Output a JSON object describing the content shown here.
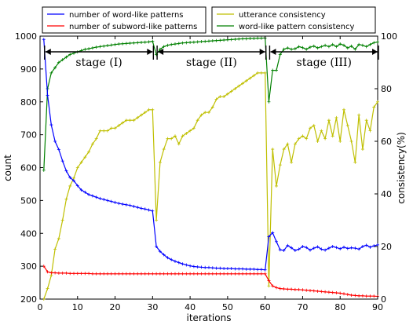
{
  "chart_data": {
    "type": "line",
    "xlabel": "iterations",
    "ylabel_left": "count",
    "ylabel_right": "consistency(%)",
    "xlim": [
      0,
      90
    ],
    "ylim_left": [
      200,
      1000
    ],
    "ylim_right": [
      0,
      100
    ],
    "x_ticks": [
      "0",
      "10",
      "20",
      "30",
      "40",
      "50",
      "60",
      "70",
      "80",
      "90"
    ],
    "y_left_ticks": [
      "200",
      "300",
      "400",
      "500",
      "600",
      "700",
      "800",
      "900",
      "1000"
    ],
    "y_right_ticks": [
      "0",
      "20",
      "40",
      "60",
      "80",
      "100"
    ],
    "grid": false,
    "legend_left": [
      {
        "label": "number of word-like patterns",
        "color": "#0000ff"
      },
      {
        "label": "number of subword-like patterns",
        "color": "#ff0000"
      }
    ],
    "legend_right": [
      {
        "label": "utterance consistency",
        "color": "#bfbf00"
      },
      {
        "label": "word-like pattern consistency",
        "color": "#008000"
      }
    ],
    "stages": [
      {
        "label": "stage (I)",
        "x_range": [
          1,
          30
        ]
      },
      {
        "label": "stage (II)",
        "x_range": [
          31,
          60
        ]
      },
      {
        "label": "stage (III)",
        "x_range": [
          61,
          90
        ]
      }
    ],
    "series": [
      {
        "name": "number of word-like patterns",
        "axis": "left",
        "color": "#0000ff",
        "x": [
          1,
          2,
          3,
          4,
          5,
          6,
          7,
          8,
          9,
          10,
          11,
          12,
          13,
          14,
          15,
          16,
          17,
          18,
          19,
          20,
          21,
          22,
          23,
          24,
          25,
          26,
          27,
          28,
          29,
          30,
          31,
          32,
          33,
          34,
          35,
          36,
          37,
          38,
          39,
          40,
          41,
          42,
          43,
          44,
          45,
          46,
          47,
          48,
          49,
          50,
          51,
          52,
          53,
          54,
          55,
          56,
          57,
          58,
          59,
          60,
          61,
          62,
          63,
          64,
          65,
          66,
          67,
          68,
          69,
          70,
          71,
          72,
          73,
          74,
          75,
          76,
          77,
          78,
          79,
          80,
          81,
          82,
          83,
          84,
          85,
          86,
          87,
          88,
          89,
          90
        ],
        "values": [
          990,
          820,
          730,
          680,
          655,
          620,
          590,
          570,
          560,
          545,
          532,
          525,
          518,
          514,
          510,
          506,
          503,
          500,
          497,
          494,
          491,
          489,
          487,
          485,
          482,
          479,
          476,
          474,
          471,
          468,
          360,
          345,
          335,
          326,
          320,
          315,
          311,
          307,
          304,
          301,
          299,
          298,
          297,
          296,
          296,
          295,
          294,
          294,
          293,
          293,
          293,
          292,
          292,
          292,
          291,
          291,
          291,
          290,
          290,
          289,
          390,
          402,
          375,
          350,
          348,
          363,
          356,
          348,
          352,
          360,
          357,
          349,
          355,
          359,
          352,
          349,
          355,
          360,
          357,
          353,
          358,
          354,
          356,
          355,
          352,
          360,
          364,
          358,
          362,
          365
        ]
      },
      {
        "name": "number of subword-like patterns",
        "axis": "left",
        "color": "#ff0000",
        "x": [
          1,
          2,
          3,
          4,
          5,
          6,
          7,
          8,
          9,
          10,
          11,
          12,
          13,
          14,
          15,
          16,
          17,
          18,
          19,
          20,
          21,
          22,
          23,
          24,
          25,
          26,
          27,
          28,
          29,
          30,
          31,
          32,
          33,
          34,
          35,
          36,
          37,
          38,
          39,
          40,
          41,
          42,
          43,
          44,
          45,
          46,
          47,
          48,
          49,
          50,
          51,
          52,
          53,
          54,
          55,
          56,
          57,
          58,
          59,
          60,
          61,
          62,
          63,
          64,
          65,
          66,
          67,
          68,
          69,
          70,
          71,
          72,
          73,
          74,
          75,
          76,
          77,
          78,
          79,
          80,
          81,
          82,
          83,
          84,
          85,
          86,
          87,
          88,
          89,
          90
        ],
        "values": [
          300,
          283,
          280,
          280,
          279,
          279,
          279,
          278,
          278,
          278,
          278,
          278,
          278,
          277,
          277,
          277,
          277,
          277,
          277,
          277,
          277,
          277,
          277,
          277,
          277,
          277,
          277,
          277,
          277,
          277,
          277,
          277,
          277,
          277,
          277,
          277,
          277,
          277,
          277,
          277,
          277,
          277,
          277,
          277,
          277,
          277,
          277,
          277,
          277,
          277,
          277,
          277,
          277,
          277,
          277,
          277,
          277,
          277,
          277,
          277,
          256,
          240,
          235,
          232,
          231,
          230,
          230,
          229,
          229,
          228,
          227,
          226,
          225,
          224,
          223,
          222,
          221,
          220,
          219,
          218,
          216,
          214,
          212,
          211,
          210,
          210,
          209,
          209,
          209,
          208
        ]
      },
      {
        "name": "utterance consistency",
        "axis": "right",
        "color": "#bfbf00",
        "x": [
          1,
          2,
          3,
          4,
          5,
          6,
          7,
          8,
          9,
          10,
          11,
          12,
          13,
          14,
          15,
          16,
          17,
          18,
          19,
          20,
          21,
          22,
          23,
          24,
          25,
          26,
          27,
          28,
          29,
          30,
          31,
          32,
          33,
          34,
          35,
          36,
          37,
          38,
          39,
          40,
          41,
          42,
          43,
          44,
          45,
          46,
          47,
          48,
          49,
          50,
          51,
          52,
          53,
          54,
          55,
          56,
          57,
          58,
          59,
          60,
          61,
          62,
          63,
          64,
          65,
          66,
          67,
          68,
          69,
          70,
          71,
          72,
          73,
          74,
          75,
          76,
          77,
          78,
          79,
          80,
          81,
          82,
          83,
          84,
          85,
          86,
          87,
          88,
          89,
          90
        ],
        "values": [
          0,
          4,
          9,
          19,
          23,
          30,
          38,
          43,
          46,
          50,
          52,
          54,
          56,
          59,
          61,
          64,
          64,
          64,
          65,
          65,
          66,
          67,
          68,
          68,
          68,
          69,
          70,
          71,
          72,
          72,
          30,
          52,
          57,
          61,
          61,
          62,
          59,
          62,
          63,
          64,
          65,
          68,
          70,
          71,
          71,
          73,
          76,
          77,
          77,
          78,
          79,
          80,
          81,
          82,
          83,
          84,
          85,
          86,
          86,
          86,
          5,
          57,
          43,
          51,
          57,
          59,
          52,
          59,
          61,
          62,
          61,
          65,
          66,
          60,
          64,
          61,
          68,
          62,
          69,
          60,
          72,
          66,
          60,
          52,
          70,
          57,
          68,
          64,
          73,
          75
        ]
      },
      {
        "name": "word-like pattern consistency",
        "axis": "right",
        "color": "#008000",
        "x": [
          1,
          2,
          3,
          4,
          5,
          6,
          7,
          8,
          9,
          10,
          11,
          12,
          13,
          14,
          15,
          16,
          17,
          18,
          19,
          20,
          21,
          22,
          23,
          24,
          25,
          26,
          27,
          28,
          29,
          30,
          31,
          32,
          33,
          34,
          35,
          36,
          37,
          38,
          39,
          40,
          41,
          42,
          43,
          44,
          45,
          46,
          47,
          48,
          49,
          50,
          51,
          52,
          53,
          54,
          55,
          56,
          57,
          58,
          59,
          60,
          61,
          62,
          63,
          64,
          65,
          66,
          67,
          68,
          69,
          70,
          71,
          72,
          73,
          74,
          75,
          76,
          77,
          78,
          79,
          80,
          81,
          82,
          83,
          84,
          85,
          86,
          87,
          88,
          89,
          90
        ],
        "values": [
          49,
          80,
          86,
          88,
          90,
          91,
          92,
          93,
          93.5,
          94,
          94.5,
          95,
          95.2,
          95.5,
          95.8,
          96,
          96.2,
          96.4,
          96.6,
          96.8,
          97,
          97.1,
          97.2,
          97.3,
          97.4,
          97.5,
          97.6,
          97.7,
          97.8,
          98,
          93,
          95,
          96,
          96.5,
          96.8,
          97,
          97.2,
          97.4,
          97.5,
          97.6,
          97.7,
          97.8,
          97.9,
          98,
          98.1,
          98.2,
          98.3,
          98.4,
          98.5,
          98.6,
          98.7,
          98.8,
          98.9,
          99,
          99,
          99.1,
          99.1,
          99.2,
          99.2,
          99.3,
          75,
          87,
          87,
          93,
          95,
          95.5,
          95,
          95.2,
          96,
          95.6,
          95,
          95.8,
          96.2,
          95.5,
          96,
          96.5,
          96,
          96.8,
          96,
          97,
          96.5,
          95.5,
          96.2,
          95,
          96.8,
          96.5,
          96,
          96.8,
          97.5,
          97.8
        ]
      }
    ]
  }
}
